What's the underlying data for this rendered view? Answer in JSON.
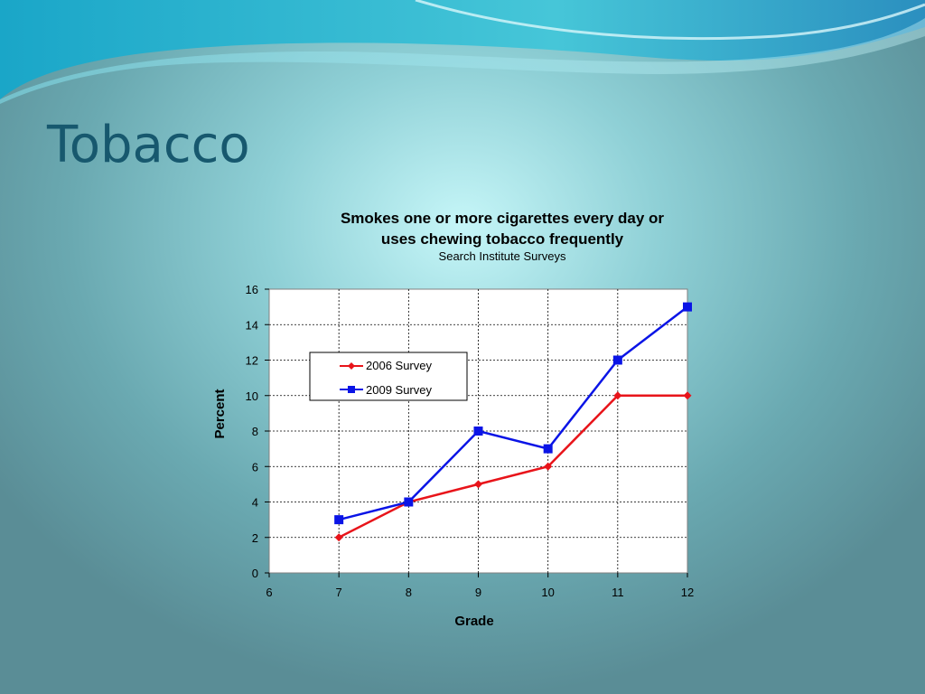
{
  "slide": {
    "title": "Tobacco"
  },
  "colors": {
    "title": "#17586e",
    "series_2006": "#e8141a",
    "series_2009": "#0a14e6"
  },
  "chart_data": {
    "type": "line",
    "title_line1": "Smokes one or more cigarettes every day or",
    "title_line2": "uses chewing tobacco frequently",
    "subtitle": "Search Institute Surveys",
    "xlabel": "Grade",
    "ylabel": "Percent",
    "xlim": [
      6,
      12
    ],
    "ylim": [
      0,
      16
    ],
    "x_ticks": [
      6,
      7,
      8,
      9,
      10,
      11,
      12
    ],
    "y_ticks": [
      0,
      2,
      4,
      6,
      8,
      10,
      12,
      14,
      16
    ],
    "grid": true,
    "legend_position": "upper-left",
    "series": [
      {
        "name": "2006 Survey",
        "marker": "diamond",
        "color": "#e8141a",
        "points": [
          {
            "x": 7,
            "y": 2
          },
          {
            "x": 8,
            "y": 4
          },
          {
            "x": 9,
            "y": 5
          },
          {
            "x": 10,
            "y": 6
          },
          {
            "x": 11,
            "y": 10
          },
          {
            "x": 12,
            "y": 10
          }
        ]
      },
      {
        "name": "2009 Survey",
        "marker": "square",
        "color": "#0a14e6",
        "points": [
          {
            "x": 7,
            "y": 3
          },
          {
            "x": 8,
            "y": 4
          },
          {
            "x": 9,
            "y": 8
          },
          {
            "x": 10,
            "y": 7
          },
          {
            "x": 11,
            "y": 12
          },
          {
            "x": 12,
            "y": 15
          }
        ]
      }
    ]
  }
}
